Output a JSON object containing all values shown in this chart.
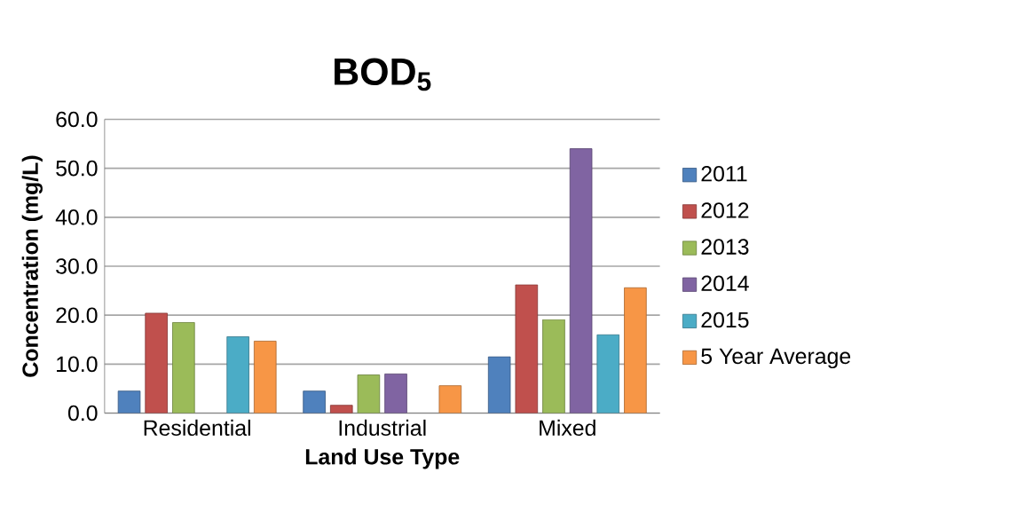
{
  "chart_data": {
    "type": "bar",
    "title": "BOD$_{5}$",
    "xlabel": "Land Use Type",
    "ylabel": "Concentration (mg/L)",
    "categories": [
      "Residential",
      "Industrial",
      "Mixed"
    ],
    "series": [
      {
        "name": "2011",
        "color": "#4f81bd",
        "values": [
          4.5,
          4.5,
          11.5
        ]
      },
      {
        "name": "2012",
        "color": "#c0504d",
        "values": [
          20.4,
          1.6,
          26.2
        ]
      },
      {
        "name": "2013",
        "color": "#9bbb59",
        "values": [
          18.5,
          7.8,
          19.1
        ]
      },
      {
        "name": "2014",
        "color": "#8064a2",
        "values": [
          null,
          8.0,
          54
        ]
      },
      {
        "name": "2015",
        "color": "#4bacc6",
        "values": [
          15.6,
          null,
          16
        ]
      },
      {
        "name": "5 Year Average",
        "color": "#f79646",
        "values": [
          14.7,
          5.6,
          25.6
        ]
      }
    ],
    "ylim": [
      0,
      60
    ],
    "yticks": [
      {
        "value": 0,
        "label": "0.0"
      },
      {
        "value": 10,
        "label": "10.0"
      },
      {
        "value": 20,
        "label": "20.0"
      },
      {
        "value": 30,
        "label": "30.0"
      },
      {
        "value": 40,
        "label": "40.0"
      },
      {
        "value": 50,
        "label": "50.0"
      },
      {
        "value": 60,
        "label": "60.0"
      }
    ],
    "grid": "y",
    "legend": "right"
  }
}
